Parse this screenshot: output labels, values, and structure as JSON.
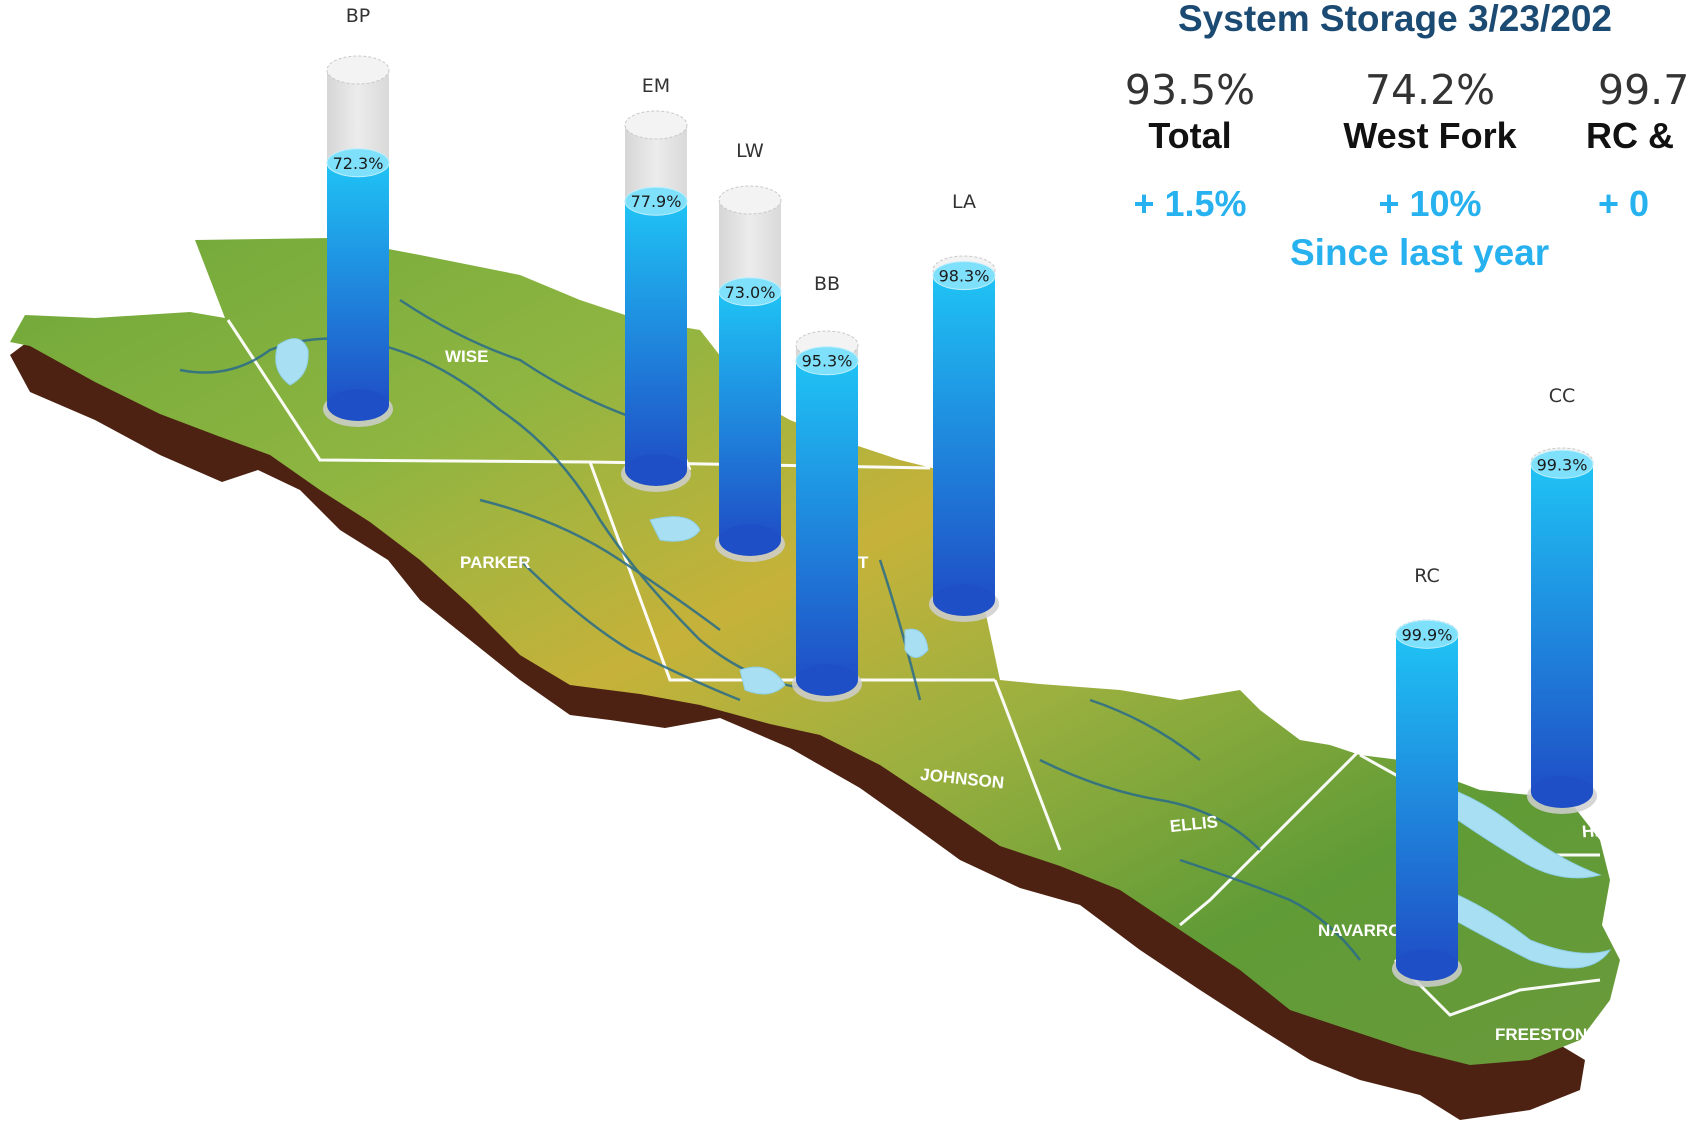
{
  "summary": {
    "title": "System Storage 3/23/202",
    "since_label": "Since last year",
    "stats": [
      {
        "value": "93.5%",
        "label": "Total",
        "change": "+ 1.5%"
      },
      {
        "value": "74.2%",
        "label": "West Fork",
        "change": "+ 10%"
      },
      {
        "value": "99.7",
        "label": "RC &",
        "change": "+ 0"
      }
    ]
  },
  "map": {
    "counties": [
      "WISE",
      "PARKER",
      "JOHNSON",
      "ELLIS",
      "NAVARRO",
      "HENDERSON",
      "FREESTONE"
    ],
    "hidden_label": "T"
  },
  "colors": {
    "cylinder_top": "#1fc3f5",
    "cylinder_bottom": "#1f4fc6",
    "empty": "#e3e3e3",
    "change": "#27b1ee",
    "title": "#1b4a72",
    "terrain_green": "#6ea83a",
    "terrain_yellow": "#c6b23a",
    "cliff": "#4d2212",
    "river": "#2a6c8a",
    "lake": "#a9dff2"
  },
  "chart_data": {
    "type": "bar",
    "categories": [
      "BP",
      "EM",
      "LW",
      "BB",
      "LA",
      "RC",
      "CC"
    ],
    "values": [
      72.3,
      77.9,
      73.0,
      95.3,
      98.3,
      99.9,
      99.3
    ],
    "value_labels": [
      "72.3%",
      "77.9%",
      "73.0%",
      "95.3%",
      "98.3%",
      "99.9%",
      "99.3%"
    ],
    "ylim": [
      0,
      100
    ],
    "title": "",
    "xlabel": "",
    "ylabel": ""
  }
}
